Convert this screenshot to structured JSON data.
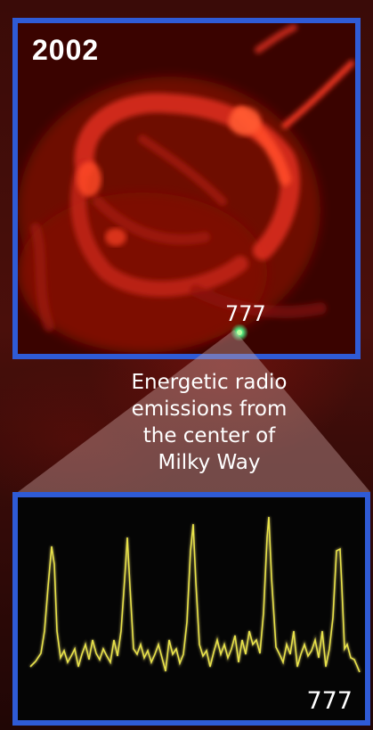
{
  "image": {
    "panel_year": "2002",
    "source_label": "777",
    "caption_lines": [
      "Energetic radio",
      "emissions from",
      "the center of",
      "Milky Way"
    ],
    "signal_label": "777",
    "colors": {
      "frame": "#2f5bd6",
      "nebula": "#d8281c",
      "signal_trace": "#e8e24a",
      "source_dot": "#4fe07a"
    }
  }
}
